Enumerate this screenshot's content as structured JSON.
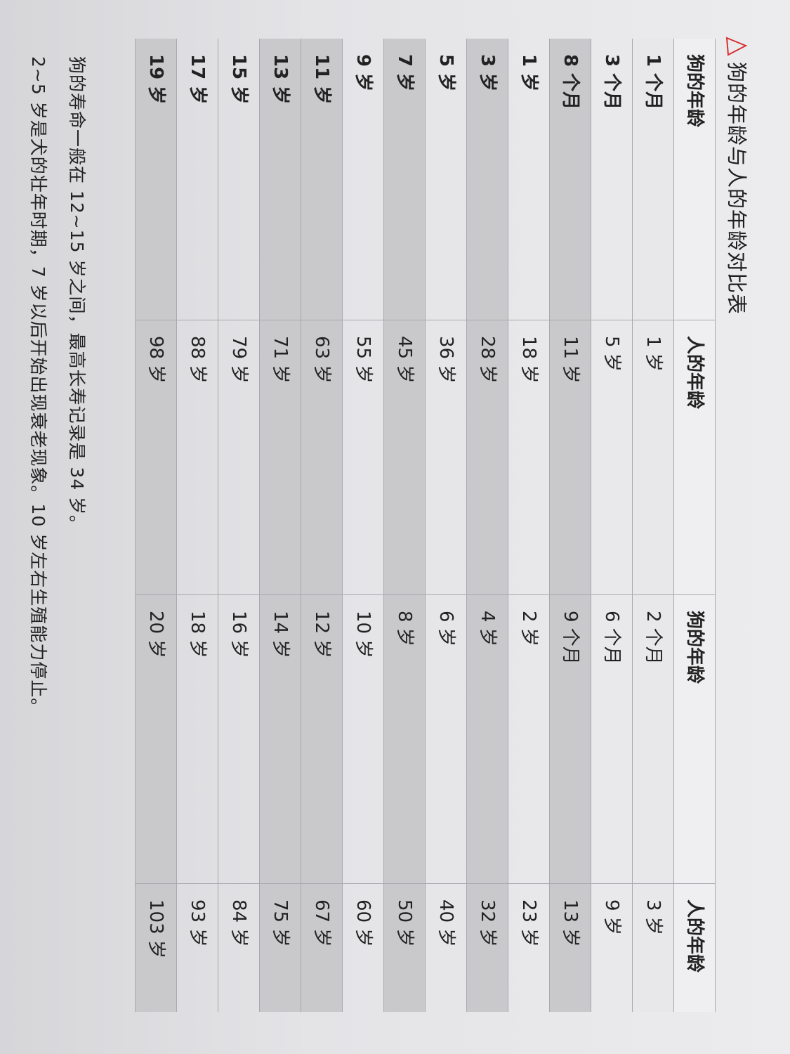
{
  "title": "狗的年龄与人的年龄对比表",
  "headers": [
    "狗的年龄",
    "人的年龄",
    "狗的年龄",
    "人的年龄"
  ],
  "rows": [
    [
      "1 个月",
      "1 岁",
      "2 个月",
      "3 岁"
    ],
    [
      "3 个月",
      "5 岁",
      "6 个月",
      "9 岁"
    ],
    [
      "8 个月",
      "11 岁",
      "9 个月",
      "13 岁"
    ],
    [
      "1 岁",
      "18 岁",
      "2 岁",
      "23 岁"
    ],
    [
      "3 岁",
      "28 岁",
      "4 岁",
      "32 岁"
    ],
    [
      "5 岁",
      "36 岁",
      "6 岁",
      "40 岁"
    ],
    [
      "7 岁",
      "45 岁",
      "8 岁",
      "50 岁"
    ],
    [
      "9 岁",
      "55 岁",
      "10 岁",
      "60 岁"
    ],
    [
      "11 岁",
      "63 岁",
      "12 岁",
      "67 岁"
    ],
    [
      "13 岁",
      "71 岁",
      "14 岁",
      "75 岁"
    ],
    [
      "15 岁",
      "79 岁",
      "16 岁",
      "84 岁"
    ],
    [
      "17 岁",
      "88 岁",
      "18 岁",
      "93 岁"
    ],
    [
      "19 岁",
      "98 岁",
      "20 岁",
      "103 岁"
    ]
  ],
  "notes": [
    "狗的寿命一般在 12~15 岁之间，最高长寿记录是 34 岁。",
    "2~5 岁是犬的壮年时期，7 岁以后开始出现衰老现象。10 岁左右生殖能力停止。"
  ]
}
